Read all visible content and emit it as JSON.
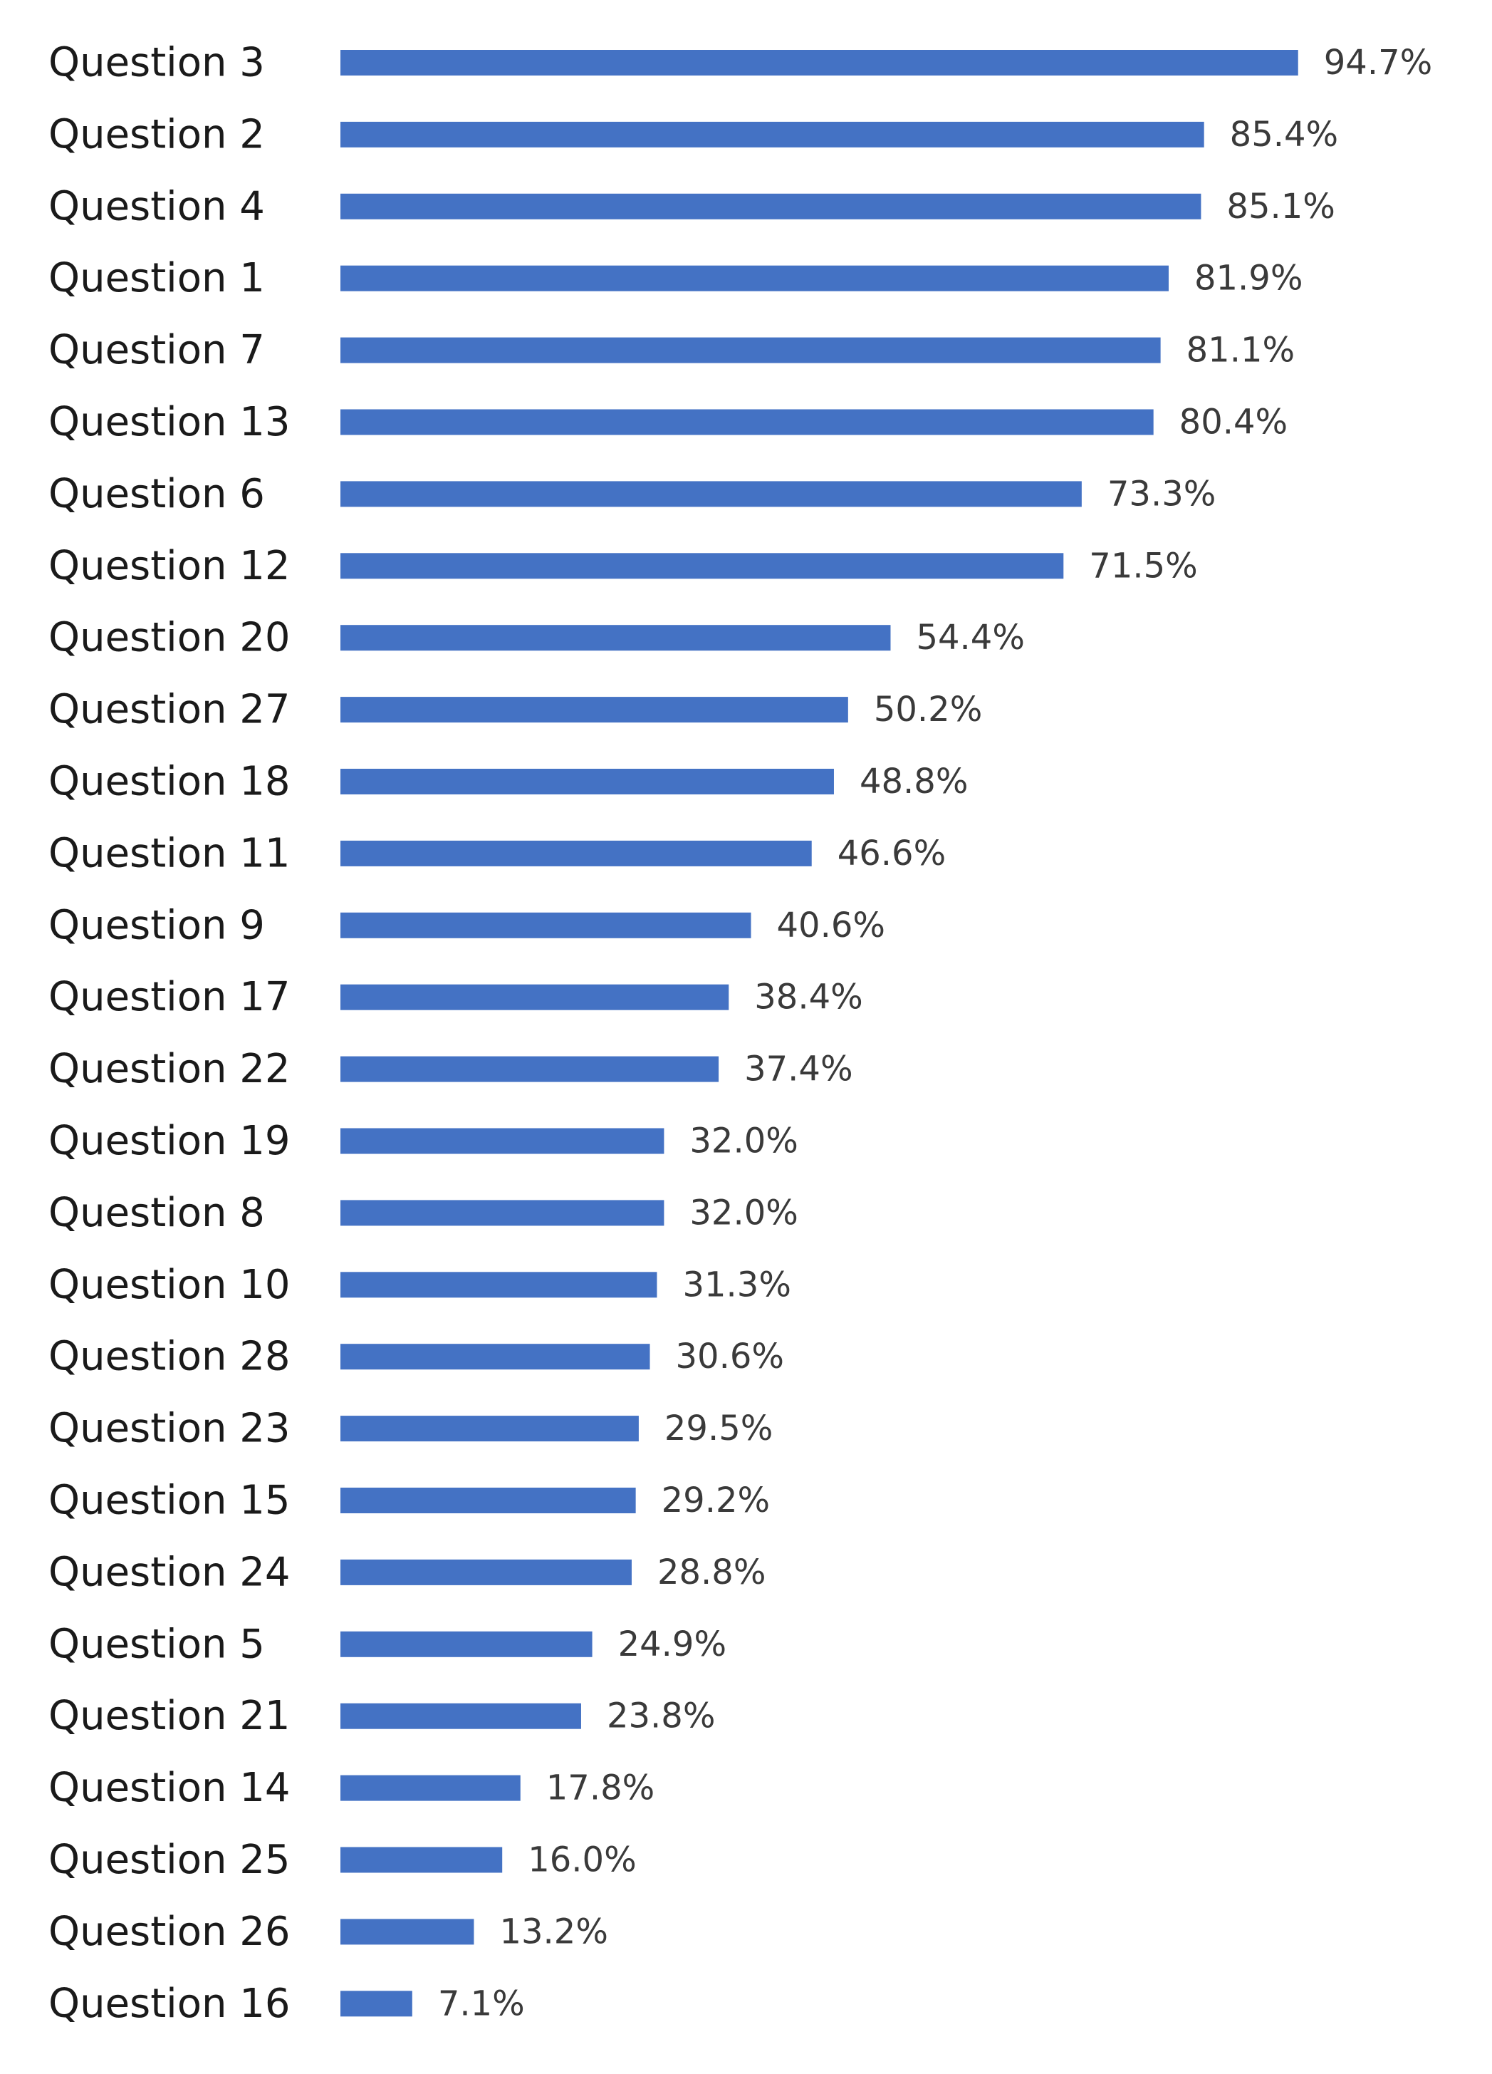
{
  "chart_data": {
    "type": "bar",
    "orientation": "horizontal",
    "categories": [
      "Question 3",
      "Question 2",
      "Question 4",
      "Question 1",
      "Question 7",
      "Question 13",
      "Question 6",
      "Question 12",
      "Question 20",
      "Question 27",
      "Question 18",
      "Question 11",
      "Question 9",
      "Question 17",
      "Question 22",
      "Question 19",
      "Question 8",
      "Question 10",
      "Question 28",
      "Question 23",
      "Question 15",
      "Question 24",
      "Question 5",
      "Question 21",
      "Question 14",
      "Question 25",
      "Question 26",
      "Question 16"
    ],
    "values": [
      94.7,
      85.4,
      85.1,
      81.9,
      81.1,
      80.4,
      73.3,
      71.5,
      54.4,
      50.2,
      48.8,
      46.6,
      40.6,
      38.4,
      37.4,
      32.0,
      32.0,
      31.3,
      30.6,
      29.5,
      29.2,
      28.8,
      24.9,
      23.8,
      17.8,
      16.0,
      13.2,
      7.1
    ],
    "value_labels": [
      "94.7%",
      "85.4%",
      "85.1%",
      "81.9%",
      "81.1%",
      "80.4%",
      "73.3%",
      "71.5%",
      "54.4%",
      "50.2%",
      "48.8%",
      "46.6%",
      "40.6%",
      "38.4%",
      "37.4%",
      "32.0%",
      "32.0%",
      "31.3%",
      "30.6%",
      "29.5%",
      "29.2%",
      "28.8%",
      "24.9%",
      "23.8%",
      "17.8%",
      "16.0%",
      "13.2%",
      "7.1%"
    ],
    "unit": "%",
    "xlim": [
      0,
      100
    ],
    "grid": false,
    "legend": "none",
    "bar_color": "#4472C4",
    "title": "",
    "xlabel": "",
    "ylabel": ""
  }
}
